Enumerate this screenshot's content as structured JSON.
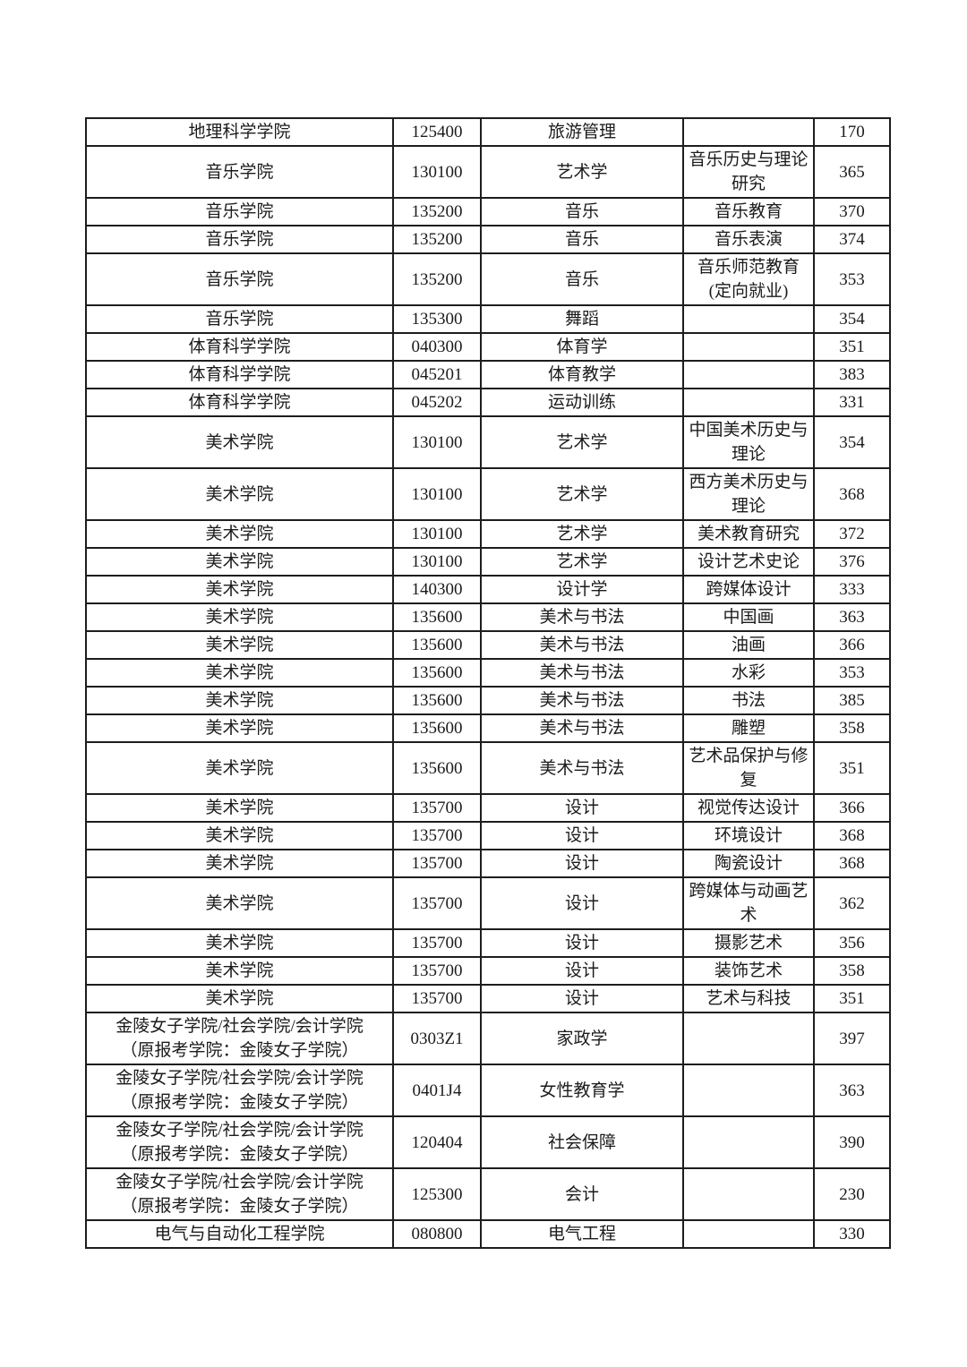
{
  "page": {
    "background_color": "#ffffff",
    "border_color": "#1d1d1d",
    "text_color": "#1b1b1b"
  },
  "table": {
    "rows": [
      {
        "college": "地理科学学院",
        "code": "125400",
        "major": "旅游管理",
        "direction": "",
        "score": "170"
      },
      {
        "college": "音乐学院",
        "code": "130100",
        "major": "艺术学",
        "direction": "音乐历史与理论\n研究",
        "score": "365"
      },
      {
        "college": "音乐学院",
        "code": "135200",
        "major": "音乐",
        "direction": "音乐教育",
        "score": "370"
      },
      {
        "college": "音乐学院",
        "code": "135200",
        "major": "音乐",
        "direction": "音乐表演",
        "score": "374"
      },
      {
        "college": "音乐学院",
        "code": "135200",
        "major": "音乐",
        "direction": "音乐师范教育\n(定向就业)",
        "score": "353"
      },
      {
        "college": "音乐学院",
        "code": "135300",
        "major": "舞蹈",
        "direction": "",
        "score": "354"
      },
      {
        "college": "体育科学学院",
        "code": "040300",
        "major": "体育学",
        "direction": "",
        "score": "351"
      },
      {
        "college": "体育科学学院",
        "code": "045201",
        "major": "体育教学",
        "direction": "",
        "score": "383"
      },
      {
        "college": "体育科学学院",
        "code": "045202",
        "major": "运动训练",
        "direction": "",
        "score": "331"
      },
      {
        "college": "美术学院",
        "code": "130100",
        "major": "艺术学",
        "direction": "中国美术历史与\n理论",
        "score": "354"
      },
      {
        "college": "美术学院",
        "code": "130100",
        "major": "艺术学",
        "direction": "西方美术历史与\n理论",
        "score": "368"
      },
      {
        "college": "美术学院",
        "code": "130100",
        "major": "艺术学",
        "direction": "美术教育研究",
        "score": "372"
      },
      {
        "college": "美术学院",
        "code": "130100",
        "major": "艺术学",
        "direction": "设计艺术史论",
        "score": "376"
      },
      {
        "college": "美术学院",
        "code": "140300",
        "major": "设计学",
        "direction": "跨媒体设计",
        "score": "333"
      },
      {
        "college": "美术学院",
        "code": "135600",
        "major": "美术与书法",
        "direction": "中国画",
        "score": "363"
      },
      {
        "college": "美术学院",
        "code": "135600",
        "major": "美术与书法",
        "direction": "油画",
        "score": "366"
      },
      {
        "college": "美术学院",
        "code": "135600",
        "major": "美术与书法",
        "direction": "水彩",
        "score": "353"
      },
      {
        "college": "美术学院",
        "code": "135600",
        "major": "美术与书法",
        "direction": "书法",
        "score": "385"
      },
      {
        "college": "美术学院",
        "code": "135600",
        "major": "美术与书法",
        "direction": "雕塑",
        "score": "358"
      },
      {
        "college": "美术学院",
        "code": "135600",
        "major": "美术与书法",
        "direction": "艺术品保护与修\n复",
        "score": "351"
      },
      {
        "college": "美术学院",
        "code": "135700",
        "major": "设计",
        "direction": "视觉传达设计",
        "score": "366"
      },
      {
        "college": "美术学院",
        "code": "135700",
        "major": "设计",
        "direction": "环境设计",
        "score": "368"
      },
      {
        "college": "美术学院",
        "code": "135700",
        "major": "设计",
        "direction": "陶瓷设计",
        "score": "368"
      },
      {
        "college": "美术学院",
        "code": "135700",
        "major": "设计",
        "direction": "跨媒体与动画艺\n术",
        "score": "362"
      },
      {
        "college": "美术学院",
        "code": "135700",
        "major": "设计",
        "direction": "摄影艺术",
        "score": "356"
      },
      {
        "college": "美术学院",
        "code": "135700",
        "major": "设计",
        "direction": "装饰艺术",
        "score": "358"
      },
      {
        "college": "美术学院",
        "code": "135700",
        "major": "设计",
        "direction": "艺术与科技",
        "score": "351"
      },
      {
        "college": "金陵女子学院/社会学院/会计学院\n（原报考学院：金陵女子学院）",
        "code": "0303Z1",
        "major": "家政学",
        "direction": "",
        "score": "397"
      },
      {
        "college": "金陵女子学院/社会学院/会计学院\n（原报考学院：金陵女子学院）",
        "code": "0401J4",
        "major": "女性教育学",
        "direction": "",
        "score": "363"
      },
      {
        "college": "金陵女子学院/社会学院/会计学院\n（原报考学院：金陵女子学院）",
        "code": "120404",
        "major": "社会保障",
        "direction": "",
        "score": "390"
      },
      {
        "college": "金陵女子学院/社会学院/会计学院\n（原报考学院：金陵女子学院）",
        "code": "125300",
        "major": "会计",
        "direction": "",
        "score": "230"
      },
      {
        "college": "电气与自动化工程学院",
        "code": "080800",
        "major": "电气工程",
        "direction": "",
        "score": "330"
      }
    ]
  }
}
